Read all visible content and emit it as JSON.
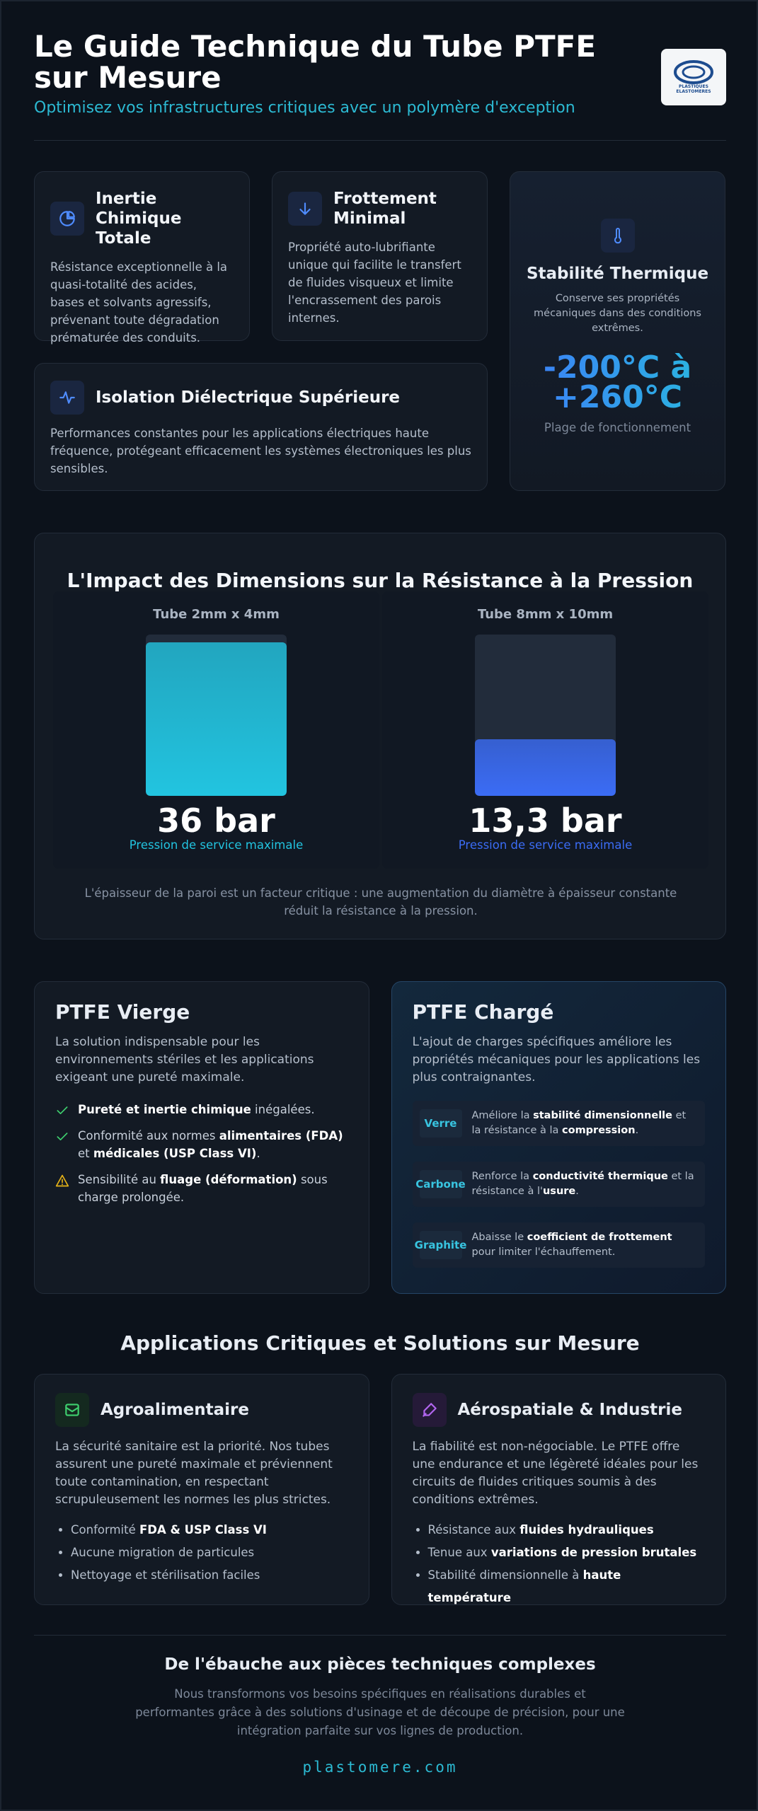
{
  "header": {
    "title": "Le Guide Technique du Tube PTFE sur Mesure",
    "subtitle": "Optimisez vos infrastructures critiques avec un polymère d'exception",
    "logo": [
      "PLASTIQUES",
      "ELASTOMERES"
    ]
  },
  "features": [
    {
      "title": "Inertie Chimique Totale",
      "text": "Résistance exceptionnelle à la quasi-totalité des acides, bases et solvants agressifs, prévenant toute dégradation prématurée des conduits."
    },
    {
      "title": "Frottement Minimal",
      "text": "Propriété auto-lubrifiante unique qui facilite le transfert de fluides visqueux et limite l'encrassement des parois internes."
    },
    {
      "title": "Isolation Diélectrique Supérieure",
      "text": "Performances constantes pour les applications électriques haute fréquence, protégeant efficacement les systèmes électroniques les plus sensibles."
    }
  ],
  "thermal": {
    "title": "Stabilité Thermique",
    "text": "Conserve ses propriétés mécaniques dans des conditions extrêmes.",
    "range": "-200°C à +260°C",
    "caption": "Plage de fonctionnement"
  },
  "pressure": {
    "title": "L'Impact des Dimensions sur la Résistance à la Pression",
    "items": [
      {
        "name": "Tube 2mm x 4mm",
        "value": 36,
        "value_label": "36 bar",
        "caption": "Pression de service maximale",
        "color": "#22c4e0"
      },
      {
        "name": "Tube 8mm x 10mm",
        "value": 13.3,
        "value_label": "13,3 bar",
        "caption": "Pression de service maximale",
        "color": "#3b6cf5"
      }
    ],
    "note": "L'épaisseur de la paroi est un facteur critique : une augmentation du diamètre à épaisseur constante réduit la résistance à la pression."
  },
  "materials": {
    "virgin": {
      "title": "PTFE Vierge",
      "intro": "La solution indispensable pour les environnements stériles et les applications exigeant une pureté maximale.",
      "points": [
        {
          "icon": "check",
          "parts": [
            {
              "t": "Pureté et inertie chimique",
              "b": true
            },
            {
              "t": " inégalées."
            }
          ]
        },
        {
          "icon": "check",
          "parts": [
            {
              "t": "Conformité aux normes "
            },
            {
              "t": "alimentaires (FDA)",
              "b": true
            },
            {
              "t": " et "
            },
            {
              "t": "médicales (USP Class VI)",
              "b": true
            },
            {
              "t": "."
            }
          ]
        },
        {
          "icon": "warning",
          "parts": [
            {
              "t": "Sensibilité au "
            },
            {
              "t": "fluage (déformation)",
              "b": true
            },
            {
              "t": " sous charge prolongée."
            }
          ]
        }
      ]
    },
    "filled": {
      "title": "PTFE Chargé",
      "intro": "L'ajout de charges spécifiques améliore les propriétés mécaniques pour les applications les plus contraignantes.",
      "fillers": [
        {
          "name": "Verre",
          "parts": [
            {
              "t": "Améliore la "
            },
            {
              "t": "stabilité dimensionnelle",
              "b": true
            },
            {
              "t": " et la résistance à la "
            },
            {
              "t": "compression",
              "b": true
            },
            {
              "t": "."
            }
          ]
        },
        {
          "name": "Carbone",
          "parts": [
            {
              "t": "Renforce la "
            },
            {
              "t": "conductivité thermique",
              "b": true
            },
            {
              "t": " et la résistance à l'"
            },
            {
              "t": "usure",
              "b": true
            },
            {
              "t": "."
            }
          ]
        },
        {
          "name": "Graphite",
          "parts": [
            {
              "t": "Abaisse le "
            },
            {
              "t": "coefficient de frottement",
              "b": true
            },
            {
              "t": " pour limiter l'échauffement."
            }
          ]
        }
      ]
    }
  },
  "applications": {
    "title": "Applications Critiques et Solutions sur Mesure",
    "cards": [
      {
        "title": "Agroalimentaire",
        "intro": "La sécurité sanitaire est la priorité. Nos tubes assurent une pureté maximale et préviennent toute contamination, en respectant scrupuleusement les normes les plus strictes.",
        "points": [
          [
            {
              "t": "Conformité "
            },
            {
              "t": "FDA & USP Class VI",
              "b": true
            }
          ],
          [
            {
              "t": "Aucune migration de particules"
            }
          ],
          [
            {
              "t": "Nettoyage et stérilisation faciles"
            }
          ]
        ]
      },
      {
        "title": "Aérospatiale & Industrie",
        "intro": "La fiabilité est non-négociable. Le PTFE offre une endurance et une légèreté idéales pour les circuits de fluides critiques soumis à des conditions extrêmes.",
        "points": [
          [
            {
              "t": "Résistance aux "
            },
            {
              "t": "fluides hydrauliques",
              "b": true
            }
          ],
          [
            {
              "t": "Tenue aux "
            },
            {
              "t": "variations de pression brutales",
              "b": true
            }
          ],
          [
            {
              "t": "Stabilité dimensionnelle à "
            },
            {
              "t": "haute température",
              "b": true
            }
          ]
        ]
      }
    ]
  },
  "footer": {
    "title": "De l'ébauche aux pièces techniques complexes",
    "text": "Nous transformons vos besoins spécifiques en réalisations durables et performantes grâce à des solutions d'usinage et de découpe de précision, pour une intégration parfaite sur vos lignes de production.",
    "url": "plastomere.com"
  }
}
